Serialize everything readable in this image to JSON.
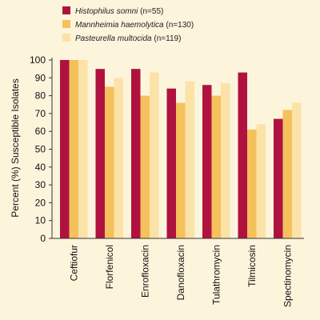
{
  "colors": {
    "background": "#fdf4dc",
    "axis": "#333333",
    "series": [
      "#b0123f",
      "#f4c15d",
      "#fbe2a6"
    ]
  },
  "legend": [
    {
      "name": "Histophilus somni",
      "count": "(n=55)"
    },
    {
      "name": "Mannheimia haemolytica",
      "count": "(n=130)"
    },
    {
      "name": "Pasteurella multocida",
      "count": "(n=119)"
    }
  ],
  "chart_data": {
    "type": "bar",
    "title": "",
    "xlabel": "",
    "ylabel": "Percent (%) Susceptible Isolates",
    "ylim": [
      0,
      100
    ],
    "yticks": [
      0,
      10,
      20,
      30,
      40,
      50,
      60,
      70,
      80,
      90,
      100
    ],
    "grid": false,
    "legend_position": "top-left",
    "categories": [
      "Ceftiofur",
      "Florfenicol",
      "Enrofloxacin",
      "Danofloxacin",
      "Tulathromycin",
      "Tilmicosin",
      "Spectinomycin"
    ],
    "series": [
      {
        "name": "Histophilus somni (n=55)",
        "values": [
          100,
          95,
          95,
          84,
          86,
          93,
          67
        ]
      },
      {
        "name": "Mannheimia haemolytica (n=130)",
        "values": [
          100,
          85,
          80,
          76,
          80,
          61,
          72
        ]
      },
      {
        "name": "Pasteurella multocida (n=119)",
        "values": [
          100,
          90,
          93,
          88,
          87,
          64,
          76
        ]
      }
    ]
  }
}
